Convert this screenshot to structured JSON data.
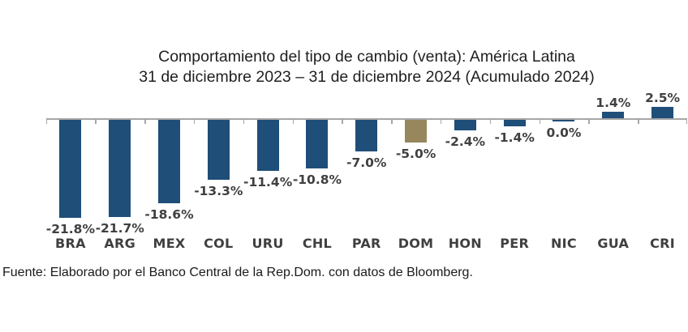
{
  "chart_data": {
    "type": "bar",
    "title": "Comportamiento del tipo de cambio (venta): América Latina",
    "subtitle": "31 de diciembre 2023 – 31 de diciembre 2024 (Acumulado 2024)",
    "categories": [
      "BRA",
      "ARG",
      "MEX",
      "COL",
      "URU",
      "CHL",
      "PAR",
      "DOM",
      "HON",
      "PER",
      "NIC",
      "GUA",
      "CRI"
    ],
    "values": [
      -21.8,
      -21.7,
      -18.6,
      -13.3,
      -11.4,
      -10.8,
      -7.0,
      -5.0,
      -2.4,
      -1.4,
      0.0,
      1.4,
      2.5
    ],
    "value_labels": [
      "-21.8%",
      "-21.7%",
      "-18.6%",
      "-13.3%",
      "-11.4%",
      "-10.8%",
      "-7.0%",
      "-5.0%",
      "-2.4%",
      "-1.4%",
      "0.0%",
      "1.4%",
      "2.5%"
    ],
    "bar_color": "#1F4E79",
    "highlight_category": "DOM",
    "highlight_color": "#96875C",
    "axis_color": "#A6A6A6",
    "label_color": "#404040",
    "title_color": "#1f1f1f",
    "ylim": [
      -25,
      5
    ],
    "grid": false,
    "legend": false,
    "value_labels_visible": true
  },
  "source": "Fuente: Elaborado por el Banco Central de la Rep.Dom. con datos de Bloomberg."
}
